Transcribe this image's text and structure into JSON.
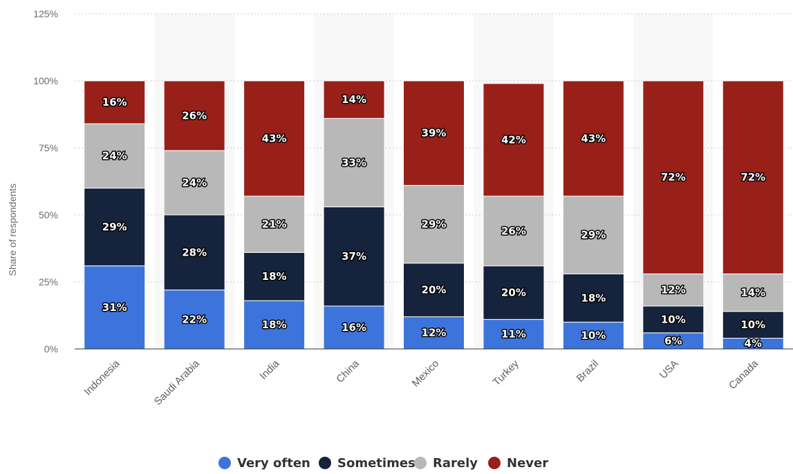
{
  "chart_data": {
    "type": "bar",
    "stacked": true,
    "ylabel": "Share of respondents",
    "xlabel": "",
    "ylim": [
      0,
      125
    ],
    "yticks": [
      "0%",
      "25%",
      "50%",
      "75%",
      "100%",
      "125%"
    ],
    "yticks_values": [
      0,
      25,
      50,
      75,
      100,
      125
    ],
    "grid": true,
    "legend_position": "bottom-center",
    "categories": [
      "Indonesia",
      "Saudi Arabia",
      "India",
      "China",
      "Mexico",
      "Turkey",
      "Brazil",
      "USA",
      "Canada"
    ],
    "series": [
      {
        "name": "Very often",
        "color": "#3d74db",
        "values": [
          31,
          22,
          18,
          16,
          12,
          11,
          10,
          6,
          4
        ]
      },
      {
        "name": "Sometimes",
        "color": "#15233c",
        "values": [
          29,
          28,
          18,
          37,
          20,
          20,
          18,
          10,
          10
        ]
      },
      {
        "name": "Rarely",
        "color": "#b8b8b8",
        "values": [
          24,
          24,
          21,
          33,
          29,
          26,
          29,
          12,
          14
        ]
      },
      {
        "name": "Never",
        "color": "#982019",
        "values": [
          16,
          26,
          43,
          14,
          39,
          42,
          43,
          72,
          72
        ]
      }
    ]
  }
}
